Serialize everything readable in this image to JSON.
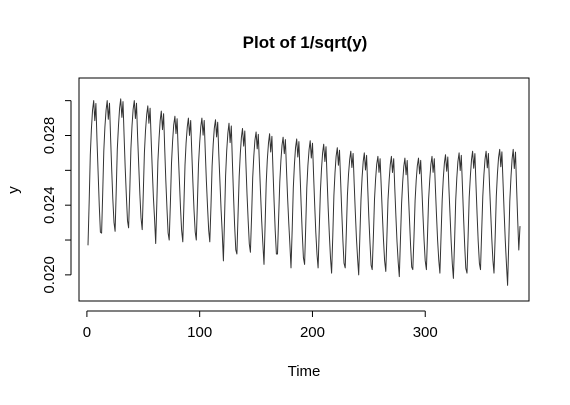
{
  "chart_data": {
    "type": "line",
    "title": "Plot of 1/sqrt(y)",
    "xlabel": "Time",
    "ylabel": "y",
    "xlim": [
      -7,
      392
    ],
    "ylim": [
      0.0185,
      0.0313
    ],
    "xticks": [
      0,
      100,
      200,
      300
    ],
    "xtick_labels": [
      "0",
      "100",
      "200",
      "300"
    ],
    "yticks": [
      0.02,
      0.024,
      0.028
    ],
    "ytick_labels": [
      "0.020",
      "0.024",
      "0.028"
    ],
    "ytick_minor": [
      0.022,
      0.026,
      0.03
    ],
    "grid": false,
    "legend": "none",
    "line_color": "#333333",
    "series": [
      {
        "x_start": 1,
        "x_end": 384,
        "period": 12,
        "peaks": [
          0.03,
          0.03,
          0.0301,
          0.03,
          0.0297,
          0.0294,
          0.0291,
          0.029,
          0.029,
          0.0289,
          0.0287,
          0.0284,
          0.0282,
          0.0281,
          0.0279,
          0.0278,
          0.0277,
          0.0275,
          0.0273,
          0.0271,
          0.027,
          0.0268,
          0.0268,
          0.0267,
          0.0267,
          0.0268,
          0.0269,
          0.027,
          0.0271,
          0.0271,
          0.0272,
          0.0272
        ],
        "troughs": [
          0.0218,
          0.0224,
          0.0225,
          0.0227,
          0.0226,
          0.0218,
          0.022,
          0.0219,
          0.022,
          0.0219,
          0.0208,
          0.0212,
          0.0213,
          0.0206,
          0.0212,
          0.0204,
          0.0206,
          0.0204,
          0.0201,
          0.0204,
          0.02,
          0.0203,
          0.0202,
          0.0199,
          0.0203,
          0.0203,
          0.0201,
          0.0198,
          0.0201,
          0.0203,
          0.0201,
          0.0194
        ],
        "y_start": 0.0217,
        "y_end": 0.0228
      }
    ]
  }
}
